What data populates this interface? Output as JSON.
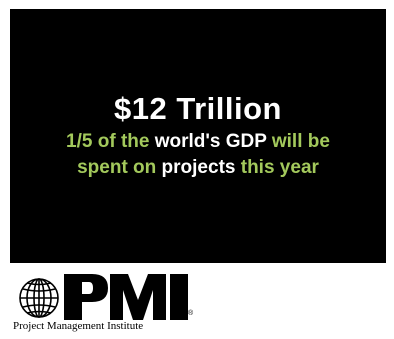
{
  "ad": {
    "headline": "$12 Trillion",
    "subline_line1": [
      {
        "text": "1/5 of the ",
        "tone": "green"
      },
      {
        "text": "world's GDP",
        "tone": "white"
      },
      {
        "text": " will be",
        "tone": "green"
      }
    ],
    "subline_line2": [
      {
        "text": "spent on ",
        "tone": "green"
      },
      {
        "text": "projects",
        "tone": "white"
      },
      {
        "text": " this year",
        "tone": "green"
      }
    ]
  },
  "logo": {
    "wordmark": "PMI",
    "registered_mark": "®",
    "organization_name": "Project Management Institute"
  },
  "colors": {
    "background": "#000000",
    "green": "#a3c95c",
    "white": "#ffffff"
  },
  "icons": {
    "globe": "globe-icon"
  }
}
